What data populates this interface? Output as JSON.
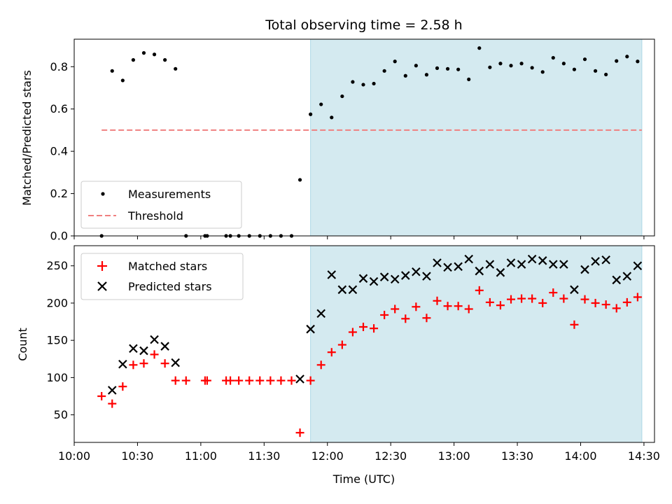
{
  "chart_data": [
    {
      "type": "scatter",
      "title": "Total observing time = 2.58 h",
      "ylabel": "Matched/Predicted stars",
      "xlabel": "",
      "ylim": [
        0,
        0.93
      ],
      "xlim": [
        "10:00",
        "14:35"
      ],
      "yticks": [
        "0.0",
        "0.2",
        "0.4",
        "0.6",
        "0.8"
      ],
      "shaded_region": {
        "x_start": "11:52",
        "x_end": "14:29",
        "color": "#d4eaf0"
      },
      "legend": {
        "placement": "lower-left",
        "entries": [
          "Measurements",
          "Threshold"
        ]
      },
      "threshold": {
        "name": "Threshold",
        "value": 0.5,
        "x_start": "10:13",
        "x_end": "14:29",
        "color": "#f08080"
      },
      "series": [
        {
          "name": "Measurements",
          "color": "#000000",
          "points": [
            [
              "10:13",
              0.0
            ],
            [
              "10:18",
              0.78
            ],
            [
              "10:23",
              0.735
            ],
            [
              "10:28",
              0.832
            ],
            [
              "10:33",
              0.865
            ],
            [
              "10:38",
              0.858
            ],
            [
              "10:43",
              0.832
            ],
            [
              "10:48",
              0.79
            ],
            [
              "10:53",
              0.0
            ],
            [
              "11:02",
              0.0
            ],
            [
              "11:03",
              0.0
            ],
            [
              "11:12",
              0.0
            ],
            [
              "11:14",
              0.0
            ],
            [
              "11:18",
              0.0
            ],
            [
              "11:23",
              0.0
            ],
            [
              "11:28",
              0.0
            ],
            [
              "11:33",
              0.0
            ],
            [
              "11:38",
              0.0
            ],
            [
              "11:43",
              0.0
            ],
            [
              "11:47",
              0.265
            ],
            [
              "11:52",
              0.575
            ],
            [
              "11:57",
              0.622
            ],
            [
              "12:02",
              0.56
            ],
            [
              "12:07",
              0.66
            ],
            [
              "12:12",
              0.728
            ],
            [
              "12:17",
              0.715
            ],
            [
              "12:22",
              0.72
            ],
            [
              "12:27",
              0.78
            ],
            [
              "12:32",
              0.825
            ],
            [
              "12:37",
              0.757
            ],
            [
              "12:42",
              0.805
            ],
            [
              "12:47",
              0.762
            ],
            [
              "12:52",
              0.793
            ],
            [
              "12:57",
              0.79
            ],
            [
              "13:02",
              0.787
            ],
            [
              "13:07",
              0.74
            ],
            [
              "13:12",
              0.888
            ],
            [
              "13:17",
              0.797
            ],
            [
              "13:22",
              0.815
            ],
            [
              "13:27",
              0.805
            ],
            [
              "13:32",
              0.815
            ],
            [
              "13:37",
              0.795
            ],
            [
              "13:42",
              0.775
            ],
            [
              "13:47",
              0.842
            ],
            [
              "13:52",
              0.815
            ],
            [
              "13:57",
              0.787
            ],
            [
              "14:02",
              0.835
            ],
            [
              "14:07",
              0.78
            ],
            [
              "14:12",
              0.763
            ],
            [
              "14:17",
              0.827
            ],
            [
              "14:22",
              0.848
            ],
            [
              "14:27",
              0.825
            ]
          ]
        }
      ]
    },
    {
      "type": "scatter",
      "title": "",
      "ylabel": "Count",
      "xlabel": "Time (UTC)",
      "ylim": [
        13,
        277
      ],
      "xlim": [
        "10:00",
        "14:35"
      ],
      "yticks": [
        "50",
        "100",
        "150",
        "200",
        "250"
      ],
      "xticks": [
        "10:00",
        "10:30",
        "11:00",
        "11:30",
        "12:00",
        "12:30",
        "13:00",
        "13:30",
        "14:00",
        "14:30"
      ],
      "shaded_region": {
        "x_start": "11:52",
        "x_end": "14:29",
        "color": "#d4eaf0"
      },
      "legend": {
        "placement": "upper-left",
        "entries": [
          "Matched stars",
          "Predicted stars"
        ]
      },
      "series": [
        {
          "name": "Matched stars",
          "marker": "+",
          "color": "#ff0000",
          "points": [
            [
              "10:13",
              75
            ],
            [
              "10:18",
              65
            ],
            [
              "10:23",
              88
            ],
            [
              "10:28",
              117
            ],
            [
              "10:33",
              119
            ],
            [
              "10:38",
              131
            ],
            [
              "10:43",
              119
            ],
            [
              "10:48",
              96
            ],
            [
              "10:53",
              96
            ],
            [
              "11:02",
              96
            ],
            [
              "11:03",
              96
            ],
            [
              "11:12",
              96
            ],
            [
              "11:14",
              96
            ],
            [
              "11:18",
              96
            ],
            [
              "11:23",
              96
            ],
            [
              "11:28",
              96
            ],
            [
              "11:33",
              96
            ],
            [
              "11:38",
              96
            ],
            [
              "11:43",
              96
            ],
            [
              "11:47",
              26
            ],
            [
              "11:52",
              96
            ],
            [
              "11:57",
              117
            ],
            [
              "12:02",
              134
            ],
            [
              "12:07",
              144
            ],
            [
              "12:12",
              161
            ],
            [
              "12:17",
              168
            ],
            [
              "12:22",
              166
            ],
            [
              "12:27",
              184
            ],
            [
              "12:32",
              192
            ],
            [
              "12:37",
              179
            ],
            [
              "12:42",
              195
            ],
            [
              "12:47",
              180
            ],
            [
              "12:52",
              203
            ],
            [
              "12:57",
              196
            ],
            [
              "13:02",
              196
            ],
            [
              "13:07",
              192
            ],
            [
              "13:12",
              217
            ],
            [
              "13:17",
              201
            ],
            [
              "13:22",
              197
            ],
            [
              "13:27",
              205
            ],
            [
              "13:32",
              206
            ],
            [
              "13:37",
              206
            ],
            [
              "13:42",
              200
            ],
            [
              "13:47",
              214
            ],
            [
              "13:52",
              206
            ],
            [
              "13:57",
              171
            ],
            [
              "14:02",
              205
            ],
            [
              "14:07",
              200
            ],
            [
              "14:12",
              198
            ],
            [
              "14:17",
              193
            ],
            [
              "14:22",
              201
            ],
            [
              "14:27",
              208
            ]
          ]
        },
        {
          "name": "Predicted stars",
          "marker": "x",
          "color": "#000000",
          "points": [
            [
              "10:18",
              83
            ],
            [
              "10:23",
              118
            ],
            [
              "10:28",
              139
            ],
            [
              "10:33",
              136
            ],
            [
              "10:38",
              151
            ],
            [
              "10:43",
              142
            ],
            [
              "10:48",
              120
            ],
            [
              "11:47",
              98
            ],
            [
              "11:52",
              165
            ],
            [
              "11:57",
              186
            ],
            [
              "12:02",
              238
            ],
            [
              "12:07",
              218
            ],
            [
              "12:12",
              218
            ],
            [
              "12:17",
              233
            ],
            [
              "12:22",
              229
            ],
            [
              "12:27",
              235
            ],
            [
              "12:32",
              232
            ],
            [
              "12:37",
              237
            ],
            [
              "12:42",
              242
            ],
            [
              "12:47",
              236
            ],
            [
              "12:52",
              254
            ],
            [
              "12:57",
              248
            ],
            [
              "13:02",
              249
            ],
            [
              "13:07",
              259
            ],
            [
              "13:12",
              243
            ],
            [
              "13:17",
              252
            ],
            [
              "13:22",
              241
            ],
            [
              "13:27",
              254
            ],
            [
              "13:32",
              252
            ],
            [
              "13:37",
              259
            ],
            [
              "13:42",
              257
            ],
            [
              "13:47",
              252
            ],
            [
              "13:52",
              252
            ],
            [
              "13:57",
              218
            ],
            [
              "14:02",
              245
            ],
            [
              "14:07",
              256
            ],
            [
              "14:12",
              258
            ],
            [
              "14:17",
              231
            ],
            [
              "14:22",
              236
            ],
            [
              "14:27",
              250
            ]
          ]
        }
      ]
    }
  ]
}
